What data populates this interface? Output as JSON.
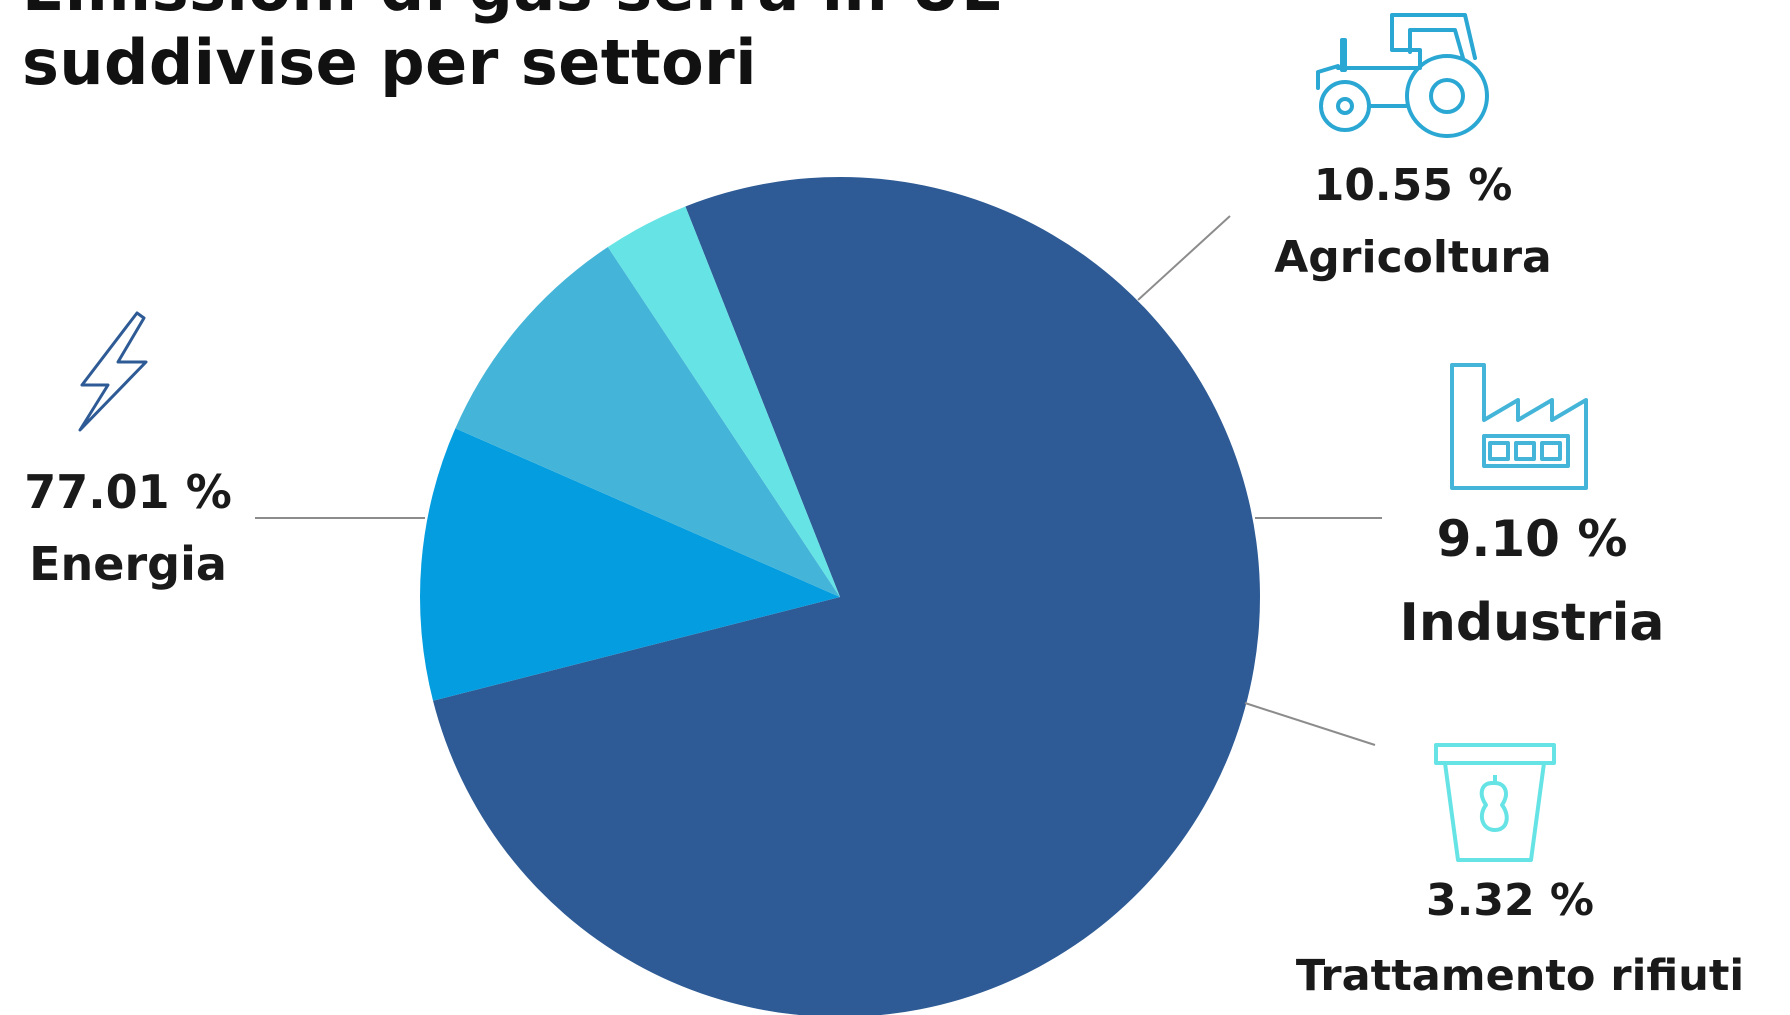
{
  "title_lines": [
    "Emissioni di gas serra in UE",
    "suddivise per settori"
  ],
  "chart_data": {
    "type": "pie",
    "title": "Emissioni di gas serra in UE suddivise per settori",
    "slices": [
      {
        "label": "Energia",
        "value": 77.01,
        "value_label": "77.01 %",
        "color": "#2e5b95",
        "icon": "lightning-icon"
      },
      {
        "label": "Agricoltura",
        "value": 10.55,
        "value_label": "10.55 %",
        "color": "#039de0",
        "icon": "tractor-icon"
      },
      {
        "label": "Industria",
        "value": 9.1,
        "value_label": "9.10 %",
        "color": "#44b5d8",
        "icon": "factory-icon"
      },
      {
        "label": "Trattamento rifiuti",
        "value": 3.32,
        "value_label": "3.32 %",
        "color": "#66e3e5",
        "icon": "trash-bin-icon"
      }
    ],
    "start_angle_deg": 338.4,
    "direction": "clockwise"
  },
  "colors": {
    "icon_stroke": "#2aa7d3",
    "leader_line": "#8c8c8c"
  }
}
